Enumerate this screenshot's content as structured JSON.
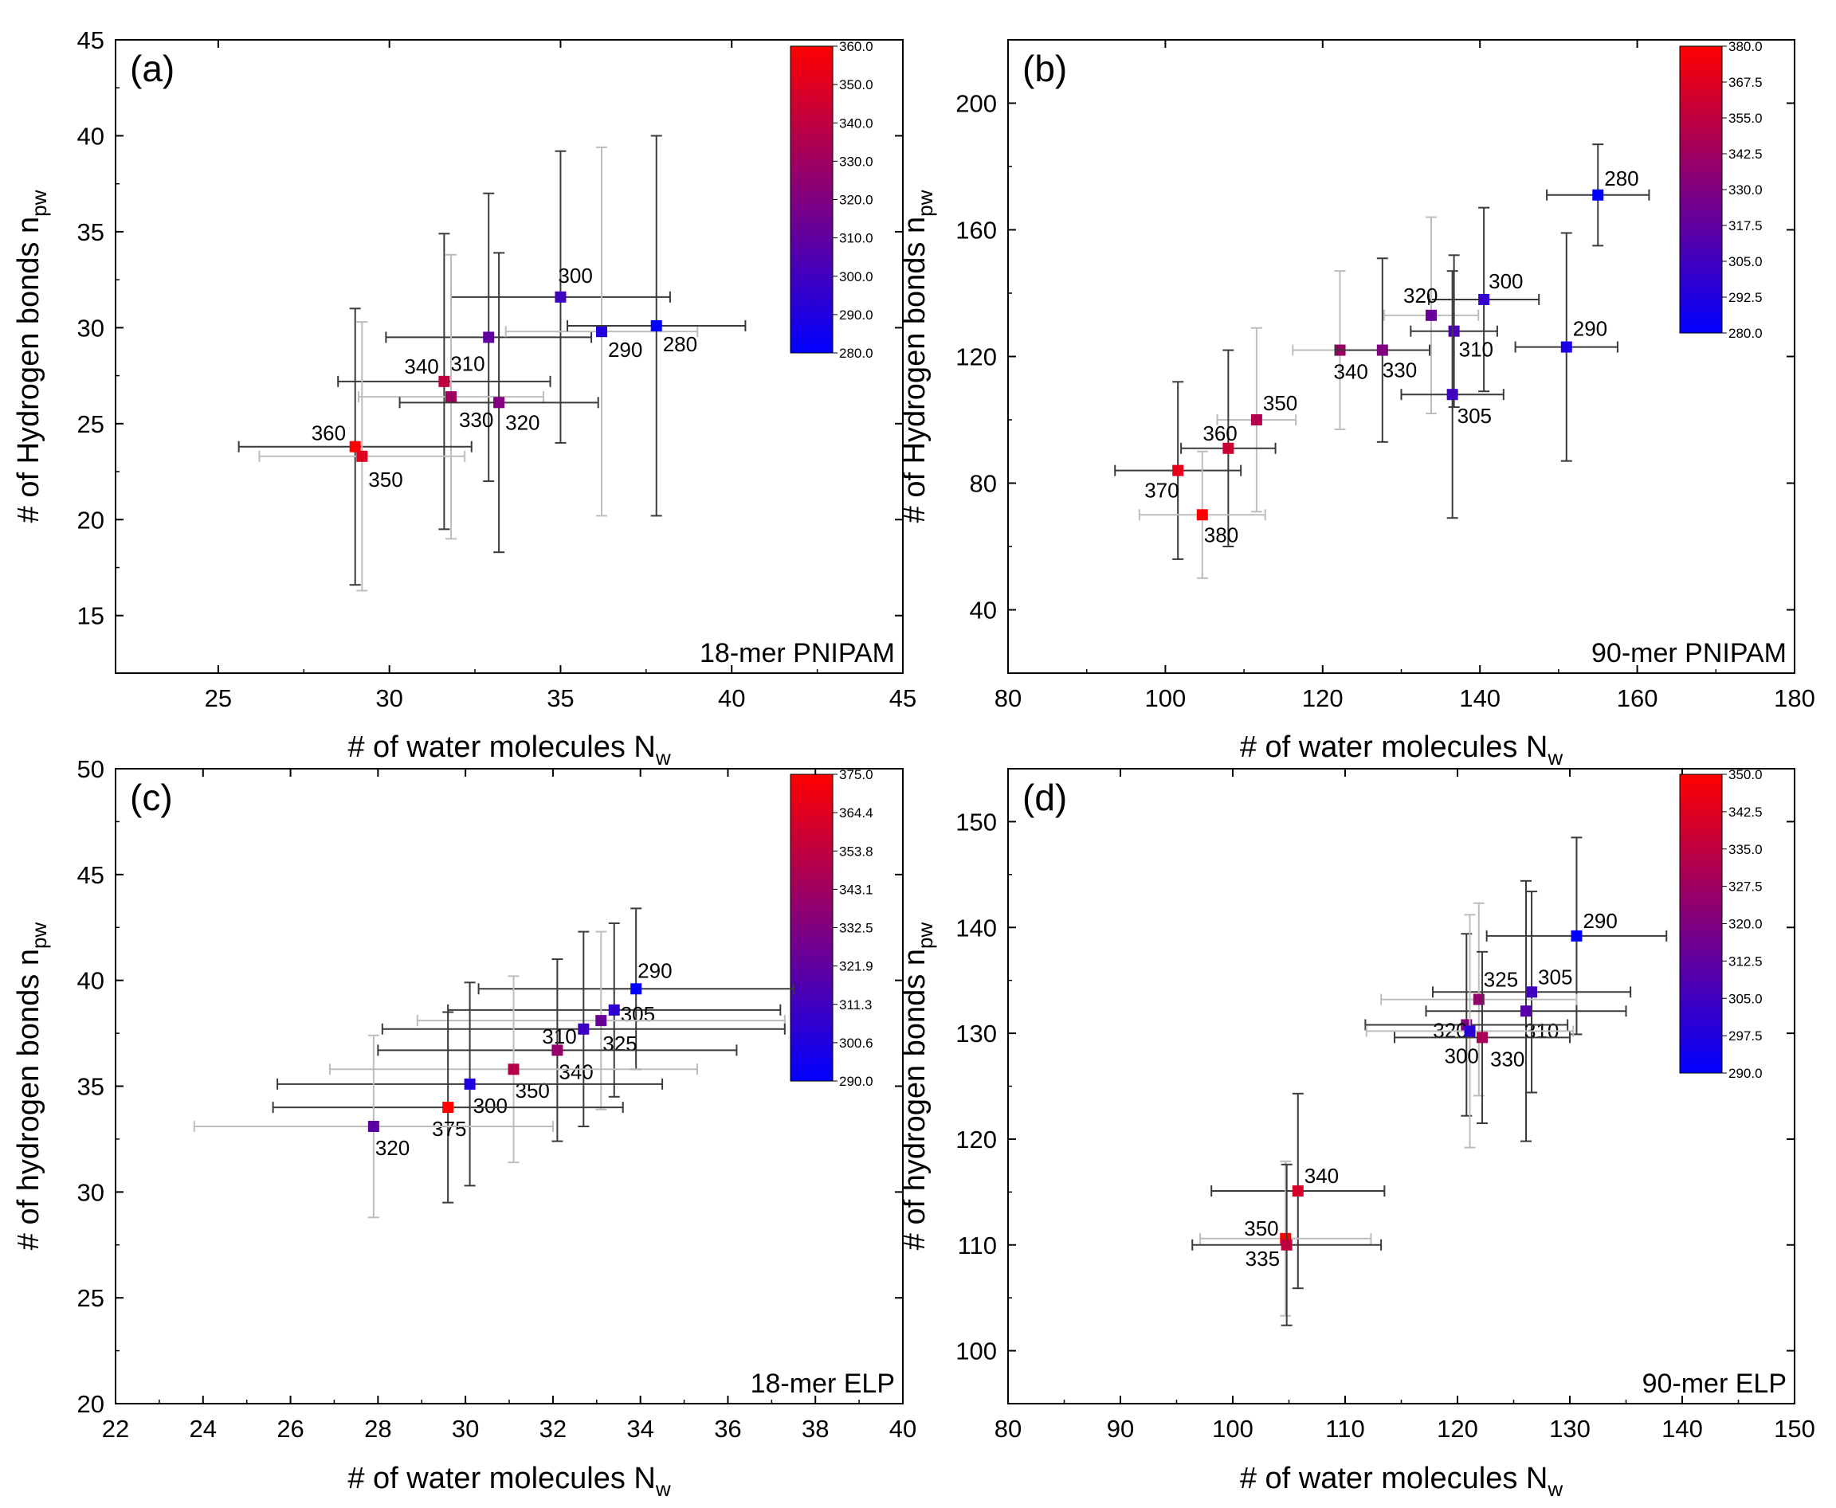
{
  "chart_data": [
    {
      "panel_label": "(a)",
      "corner_label": "18-mer PNIPAM",
      "type": "scatter",
      "xlabel": {
        "main": "# of water molecules N",
        "sub": "w"
      },
      "ylabel": {
        "main": "# of Hydrogen bonds n",
        "sub": "pw"
      },
      "xlim": [
        22,
        45
      ],
      "ylim": [
        12,
        45
      ],
      "xticks": [
        25,
        30,
        35,
        40,
        45
      ],
      "yticks": [
        15,
        20,
        25,
        30,
        35,
        40,
        45
      ],
      "colorbar": {
        "range": [
          280,
          360
        ],
        "labels": [
          "360.0",
          "350.0",
          "340.0",
          "330.0",
          "320.0",
          "310.0",
          "300.0",
          "290.0",
          "280.0"
        ]
      },
      "points": [
        {
          "label": "300",
          "T": 300,
          "x": 35.0,
          "y": 31.6,
          "xerr": 3.2,
          "yerr": 7.6,
          "lx": -3,
          "ly": -18
        },
        {
          "label": "310",
          "T": 310,
          "x": 32.9,
          "y": 29.5,
          "xerr": 3.0,
          "yerr": 7.5,
          "lx": -48,
          "ly": 42
        },
        {
          "label": "290",
          "T": 290,
          "x": 36.2,
          "y": 29.8,
          "xerr": 2.8,
          "yerr": 9.6,
          "lx": 8,
          "ly": 32
        },
        {
          "label": "280",
          "T": 280,
          "x": 37.8,
          "y": 30.1,
          "xerr": 2.6,
          "yerr": 9.9,
          "lx": 8,
          "ly": 32
        },
        {
          "label": "340",
          "T": 340,
          "x": 31.6,
          "y": 27.2,
          "xerr": 3.1,
          "yerr": 7.7,
          "lx": -50,
          "ly": -10
        },
        {
          "label": "330",
          "T": 330,
          "x": 31.8,
          "y": 26.4,
          "xerr": 2.7,
          "yerr": 7.4,
          "lx": 10,
          "ly": 38
        },
        {
          "label": "320",
          "T": 320,
          "x": 33.2,
          "y": 26.1,
          "xerr": 2.9,
          "yerr": 7.8,
          "lx": 8,
          "ly": 34
        },
        {
          "label": "360",
          "T": 360,
          "x": 29.0,
          "y": 23.8,
          "xerr": 3.4,
          "yerr": 7.2,
          "lx": -55,
          "ly": -8
        },
        {
          "label": "350",
          "T": 350,
          "x": 29.2,
          "y": 23.3,
          "xerr": 3.0,
          "yerr": 7.0,
          "lx": 8,
          "ly": 38
        }
      ]
    },
    {
      "panel_label": "(b)",
      "corner_label": "90-mer PNIPAM",
      "type": "scatter",
      "xlabel": {
        "main": "# of water molecules N",
        "sub": "w"
      },
      "ylabel": {
        "main": "# of Hydrogen bonds n",
        "sub": "pw"
      },
      "xlim": [
        80,
        180
      ],
      "ylim": [
        20,
        220
      ],
      "xticks": [
        80,
        100,
        120,
        140,
        160,
        180
      ],
      "yticks": [
        40,
        80,
        120,
        160,
        200
      ],
      "colorbar": {
        "range": [
          280,
          380
        ],
        "labels": [
          "380.0",
          "367.5",
          "355.0",
          "342.5",
          "330.0",
          "317.5",
          "305.0",
          "292.5",
          "280.0"
        ]
      },
      "points": [
        {
          "label": "280",
          "T": 280,
          "x": 155.0,
          "y": 171,
          "xerr": 6.5,
          "yerr": 16,
          "lx": 8,
          "ly": -12
        },
        {
          "label": "300",
          "T": 300,
          "x": 140.5,
          "y": 138,
          "xerr": 7.0,
          "yerr": 29,
          "lx": 6,
          "ly": -14
        },
        {
          "label": "320",
          "T": 320,
          "x": 133.8,
          "y": 133,
          "xerr": 6.0,
          "yerr": 31,
          "lx": -35,
          "ly": -16
        },
        {
          "label": "290",
          "T": 290,
          "x": 151.0,
          "y": 123,
          "xerr": 6.5,
          "yerr": 36,
          "lx": 8,
          "ly": -14
        },
        {
          "label": "310",
          "T": 310,
          "x": 136.7,
          "y": 128,
          "xerr": 5.5,
          "yerr": 24,
          "lx": 6,
          "ly": 32
        },
        {
          "label": "340",
          "T": 340,
          "x": 122.2,
          "y": 122,
          "xerr": 6.0,
          "yerr": 25,
          "lx": -8,
          "ly": 36
        },
        {
          "label": "330",
          "T": 330,
          "x": 127.6,
          "y": 122,
          "xerr": 6.0,
          "yerr": 29,
          "lx": 0,
          "ly": 34
        },
        {
          "label": "305",
          "T": 305,
          "x": 136.5,
          "y": 108,
          "xerr": 6.5,
          "yerr": 39,
          "lx": 6,
          "ly": 36
        },
        {
          "label": "350",
          "T": 350,
          "x": 111.6,
          "y": 100,
          "xerr": 5.0,
          "yerr": 29,
          "lx": 8,
          "ly": -12
        },
        {
          "label": "360",
          "T": 360,
          "x": 108.0,
          "y": 91,
          "xerr": 6.0,
          "yerr": 31,
          "lx": -32,
          "ly": -10
        },
        {
          "label": "370",
          "T": 370,
          "x": 101.6,
          "y": 84,
          "xerr": 8.0,
          "yerr": 28,
          "lx": -42,
          "ly": 34
        },
        {
          "label": "380",
          "T": 380,
          "x": 104.7,
          "y": 70,
          "xerr": 8.0,
          "yerr": 20,
          "lx": 2,
          "ly": 34
        }
      ]
    },
    {
      "panel_label": "(c)",
      "corner_label": "18-mer ELP",
      "type": "scatter",
      "xlabel": {
        "main": "# of water molecules N",
        "sub": "w"
      },
      "ylabel": {
        "main": "# of hydrogen bonds n",
        "sub": "pw"
      },
      "xlim": [
        22,
        40
      ],
      "ylim": [
        20,
        50
      ],
      "xticks": [
        22,
        24,
        26,
        28,
        30,
        32,
        34,
        36,
        38,
        40
      ],
      "yticks": [
        20,
        25,
        30,
        35,
        40,
        45,
        50
      ],
      "colorbar": {
        "range": [
          290,
          375
        ],
        "labels": [
          "375.0",
          "364.4",
          "353.8",
          "343.1",
          "332.5",
          "321.9",
          "311.3",
          "300.6",
          "290.0"
        ]
      },
      "points": [
        {
          "label": "290",
          "T": 290,
          "x": 33.9,
          "y": 39.6,
          "xerr": 3.6,
          "yerr": 3.8,
          "lx": 2,
          "ly": -14
        },
        {
          "label": "305",
          "T": 305,
          "x": 33.4,
          "y": 38.6,
          "xerr": 3.8,
          "yerr": 4.1,
          "lx": 8,
          "ly": 14
        },
        {
          "label": "325",
          "T": 325,
          "x": 33.1,
          "y": 38.1,
          "xerr": 4.2,
          "yerr": 4.2,
          "lx": 2,
          "ly": 38
        },
        {
          "label": "310",
          "T": 310,
          "x": 32.7,
          "y": 37.7,
          "xerr": 4.6,
          "yerr": 4.6,
          "lx": -52,
          "ly": 18
        },
        {
          "label": "340",
          "T": 340,
          "x": 32.1,
          "y": 36.7,
          "xerr": 4.1,
          "yerr": 4.3,
          "lx": 2,
          "ly": 36
        },
        {
          "label": "350",
          "T": 350,
          "x": 31.1,
          "y": 35.8,
          "xerr": 4.2,
          "yerr": 4.4,
          "lx": 2,
          "ly": 36
        },
        {
          "label": "300",
          "T": 300,
          "x": 30.1,
          "y": 35.1,
          "xerr": 4.4,
          "yerr": 4.8,
          "lx": 4,
          "ly": 36
        },
        {
          "label": "375",
          "T": 375,
          "x": 29.6,
          "y": 34.0,
          "xerr": 4.0,
          "yerr": 4.5,
          "lx": -20,
          "ly": 36
        },
        {
          "label": "320",
          "T": 320,
          "x": 27.9,
          "y": 33.1,
          "xerr": 4.1,
          "yerr": 4.3,
          "lx": 2,
          "ly": 36
        }
      ]
    },
    {
      "panel_label": "(d)",
      "corner_label": "90-mer ELP",
      "type": "scatter",
      "xlabel": {
        "main": "# of water molecules N",
        "sub": "w"
      },
      "ylabel": {
        "main": "# of hydrogen bonds n",
        "sub": "pw"
      },
      "xlim": [
        80,
        150
      ],
      "ylim": [
        95,
        155
      ],
      "xticks": [
        80,
        90,
        100,
        110,
        120,
        130,
        140,
        150
      ],
      "yticks": [
        100,
        110,
        120,
        130,
        140,
        150
      ],
      "colorbar": {
        "range": [
          290,
          350
        ],
        "labels": [
          "350.0",
          "342.5",
          "335.0",
          "327.5",
          "320.0",
          "312.5",
          "305.0",
          "297.5",
          "290.0"
        ]
      },
      "points": [
        {
          "label": "290",
          "T": 290,
          "x": 130.6,
          "y": 139.2,
          "xerr": 8.0,
          "yerr": 9.3,
          "lx": 8,
          "ly": -10
        },
        {
          "label": "305",
          "T": 305,
          "x": 126.6,
          "y": 133.9,
          "xerr": 8.8,
          "yerr": 9.5,
          "lx": 8,
          "ly": -10
        },
        {
          "label": "325",
          "T": 325,
          "x": 121.9,
          "y": 133.2,
          "xerr": 8.7,
          "yerr": 9.1,
          "lx": 6,
          "ly": -16
        },
        {
          "label": "310",
          "T": 310,
          "x": 126.1,
          "y": 132.1,
          "xerr": 8.9,
          "yerr": 12.3,
          "lx": -2,
          "ly": 34
        },
        {
          "label": "320",
          "T": 320,
          "x": 120.8,
          "y": 130.8,
          "xerr": 9.0,
          "yerr": 8.6,
          "lx": -42,
          "ly": 16
        },
        {
          "label": "300",
          "T": 300,
          "x": 121.1,
          "y": 130.2,
          "xerr": 9.2,
          "yerr": 11.0,
          "lx": -32,
          "ly": 40
        },
        {
          "label": "330",
          "T": 330,
          "x": 122.2,
          "y": 129.6,
          "xerr": 7.8,
          "yerr": 8.1,
          "lx": 10,
          "ly": 36
        },
        {
          "label": "340",
          "T": 340,
          "x": 105.8,
          "y": 115.1,
          "xerr": 7.7,
          "yerr": 9.2,
          "lx": 8,
          "ly": -10
        },
        {
          "label": "350",
          "T": 350,
          "x": 104.7,
          "y": 110.6,
          "xerr": 7.6,
          "yerr": 7.3,
          "lx": -52,
          "ly": -4
        },
        {
          "label": "335",
          "T": 335,
          "x": 104.8,
          "y": 110.0,
          "xerr": 8.4,
          "yerr": 7.6,
          "lx": -52,
          "ly": 26
        }
      ]
    }
  ]
}
